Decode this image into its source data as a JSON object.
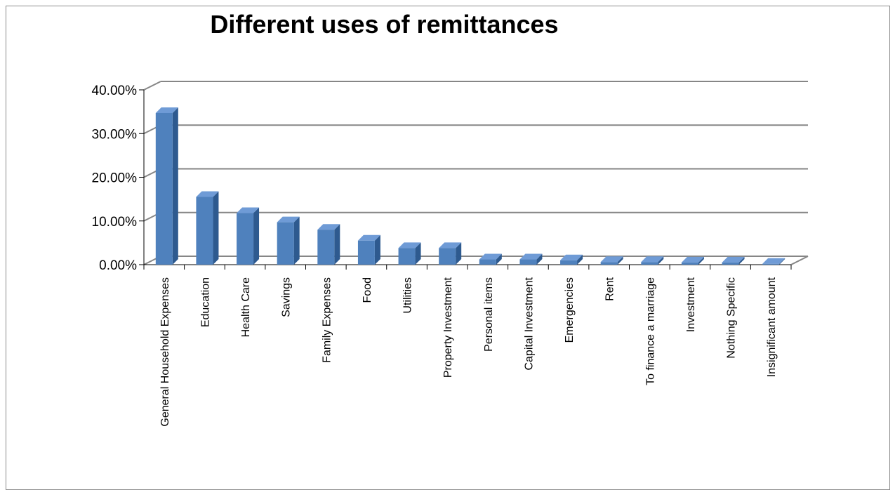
{
  "chart_data": {
    "type": "bar",
    "title": "Different uses of remittances",
    "xlabel": "",
    "ylabel": "",
    "ylim": [
      0,
      0.4
    ],
    "yticks": [
      "0.00%",
      "10.00%",
      "20.00%",
      "30.00%",
      "40.00%"
    ],
    "grid": true,
    "legend": "none",
    "colors": {
      "bar_front": "#4F81BD",
      "bar_side": "#2E5A8F",
      "bar_top": "#6F9BD6",
      "grid": "#868686"
    },
    "categories": [
      "General Household Expenses",
      "Education",
      "Health Care",
      "Savings",
      "Family Expenses",
      "Food",
      "Utilities",
      "Property Investment",
      "Personal items",
      "Capital Investment",
      "Emergencies",
      "Rent",
      "To finance a marriage",
      "Investment",
      "Nothing Specific",
      "Insignificant amount"
    ],
    "values": [
      0.347,
      0.155,
      0.118,
      0.097,
      0.08,
      0.055,
      0.038,
      0.038,
      0.012,
      0.012,
      0.01,
      0.006,
      0.006,
      0.005,
      0.005,
      0.002
    ]
  }
}
